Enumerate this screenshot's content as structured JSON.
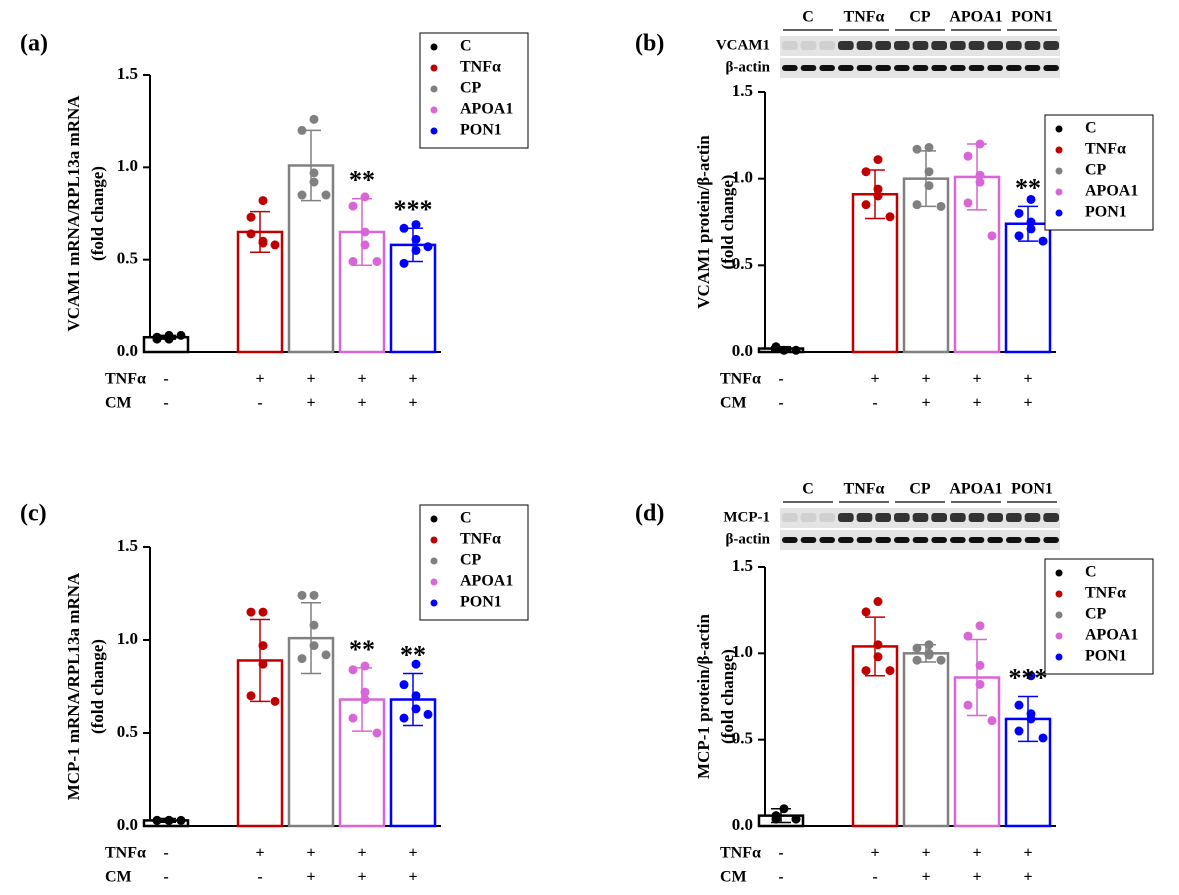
{
  "chart_data": [
    {
      "type": "bar",
      "panel_label": "(a)",
      "ylabel": [
        "VCAM1 mRNA/RPL13a mRNA",
        "(fold change)"
      ],
      "categories": [
        "C",
        "TNFα",
        "CP",
        "APOA1",
        "PON1"
      ],
      "colors": [
        "#000000",
        "#c00000",
        "#808080",
        "#d966d6",
        "#0000ff"
      ],
      "values": [
        0.08,
        0.65,
        1.01,
        0.65,
        0.58
      ],
      "errors": [
        0.01,
        0.11,
        0.19,
        0.18,
        0.09
      ],
      "points": [
        [
          0.07,
          0.08,
          0.09,
          0.08,
          0.07,
          0.09
        ],
        [
          0.82,
          0.73,
          0.6,
          0.59,
          0.64,
          0.58
        ],
        [
          1.26,
          1.2,
          0.97,
          0.92,
          0.85,
          0.85
        ],
        [
          0.84,
          0.79,
          0.65,
          0.58,
          0.49,
          0.49
        ],
        [
          0.69,
          0.67,
          0.61,
          0.55,
          0.48,
          0.57
        ]
      ],
      "annotations": [
        null,
        null,
        null,
        "**",
        "***"
      ],
      "ylim": [
        0,
        1.5
      ],
      "yticks": [
        {
          "value": 0,
          "label": "0.0"
        },
        {
          "value": 0.5,
          "label": "0.5"
        },
        {
          "value": 1,
          "label": "1.0"
        },
        {
          "value": 1.5,
          "label": "1.5"
        }
      ],
      "conditions": [
        {
          "name": "TNFα",
          "values": [
            "-",
            "+",
            "+",
            "+",
            "+"
          ]
        },
        {
          "name": "CM",
          "values": [
            "-",
            "-",
            "+",
            "+",
            "+"
          ]
        }
      ],
      "legend_loc": "upper right"
    },
    {
      "type": "bar",
      "panel_label": "(b)",
      "ylabel": [
        "VCAM1 protein/β-actin",
        "(fold change)"
      ],
      "blot": {
        "lanes": [
          "C",
          "TNFα",
          "CP",
          "APOA1",
          "PON1"
        ],
        "rows": [
          "VCAM1",
          "β-actin"
        ]
      },
      "categories": [
        "C",
        "TNFα",
        "CP",
        "APOA1",
        "PON1"
      ],
      "colors": [
        "#000000",
        "#c00000",
        "#808080",
        "#d966d6",
        "#0000ff"
      ],
      "values": [
        0.02,
        0.91,
        1.0,
        1.01,
        0.74
      ],
      "errors": [
        0.01,
        0.14,
        0.16,
        0.19,
        0.1
      ],
      "points": [
        [
          0.01,
          0.03,
          0.02,
          0.01
        ],
        [
          1.11,
          1.04,
          0.94,
          0.9,
          0.85,
          0.78
        ],
        [
          1.18,
          1.17,
          1.04,
          0.96,
          0.85,
          0.84
        ],
        [
          1.2,
          1.13,
          1.02,
          0.98,
          0.86,
          0.67
        ],
        [
          0.88,
          0.8,
          0.75,
          0.71,
          0.67,
          0.64
        ]
      ],
      "annotations": [
        null,
        null,
        null,
        null,
        "**"
      ],
      "ylim": [
        0,
        1.5
      ],
      "yticks": [
        {
          "value": 0,
          "label": "0.0"
        },
        {
          "value": 0.5,
          "label": "0.5"
        },
        {
          "value": 1,
          "label": "1.0"
        },
        {
          "value": 1.5,
          "label": "1.5"
        }
      ],
      "conditions": [
        {
          "name": "TNFα",
          "values": [
            "-",
            "+",
            "+",
            "+",
            "+"
          ]
        },
        {
          "name": "CM",
          "values": [
            "-",
            "-",
            "+",
            "+",
            "+"
          ]
        }
      ],
      "legend_loc": "upper right"
    },
    {
      "type": "bar",
      "panel_label": "(c)",
      "ylabel": [
        "MCP-1 mRNA/RPL13a mRNA",
        "(fold change)"
      ],
      "categories": [
        "C",
        "TNFα",
        "CP",
        "APOA1",
        "PON1"
      ],
      "colors": [
        "#000000",
        "#c00000",
        "#808080",
        "#d966d6",
        "#0000ff"
      ],
      "values": [
        0.03,
        0.89,
        1.01,
        0.68,
        0.68
      ],
      "errors": [
        0.01,
        0.22,
        0.19,
        0.17,
        0.14
      ],
      "points": [
        [
          0.03,
          0.03,
          0.03,
          0.03,
          0.03,
          0.03
        ],
        [
          1.15,
          1.15,
          0.97,
          0.87,
          0.7,
          0.67
        ],
        [
          1.24,
          1.24,
          1.08,
          0.97,
          0.9,
          0.92
        ],
        [
          0.86,
          0.84,
          0.72,
          0.68,
          0.58,
          0.5
        ],
        [
          0.87,
          0.76,
          0.7,
          0.63,
          0.58,
          0.6
        ]
      ],
      "annotations": [
        null,
        null,
        null,
        "**",
        "**"
      ],
      "ylim": [
        0,
        1.5
      ],
      "yticks": [
        {
          "value": 0,
          "label": "0.0"
        },
        {
          "value": 0.5,
          "label": "0.5"
        },
        {
          "value": 1,
          "label": "1.0"
        },
        {
          "value": 1.5,
          "label": "1.5"
        }
      ],
      "conditions": [
        {
          "name": "TNFα",
          "values": [
            "-",
            "+",
            "+",
            "+",
            "+"
          ]
        },
        {
          "name": "CM",
          "values": [
            "-",
            "-",
            "+",
            "+",
            "+"
          ]
        }
      ],
      "legend_loc": "upper right"
    },
    {
      "type": "bar",
      "panel_label": "(d)",
      "ylabel": [
        "MCP-1 protein/β-actin",
        "(fold change)"
      ],
      "blot": {
        "lanes": [
          "C",
          "TNFα",
          "CP",
          "APOA1",
          "PON1"
        ],
        "rows": [
          "MCP-1",
          "β-actin"
        ]
      },
      "categories": [
        "C",
        "TNFα",
        "CP",
        "APOA1",
        "PON1"
      ],
      "colors": [
        "#000000",
        "#c00000",
        "#808080",
        "#d966d6",
        "#0000ff"
      ],
      "values": [
        0.06,
        1.04,
        1.0,
        0.86,
        0.62
      ],
      "errors": [
        0.04,
        0.17,
        0.05,
        0.22,
        0.13
      ],
      "points": [
        [
          0.1,
          0.06,
          0.04,
          0.04
        ],
        [
          1.3,
          1.24,
          1.05,
          0.98,
          0.9,
          0.9
        ],
        [
          1.05,
          1.03,
          1.0,
          0.99,
          0.96,
          0.96
        ],
        [
          1.16,
          1.1,
          0.93,
          0.82,
          0.7,
          0.61
        ],
        [
          0.87,
          0.7,
          0.65,
          0.62,
          0.55,
          0.51
        ]
      ],
      "annotations": [
        null,
        null,
        null,
        null,
        "***"
      ],
      "ylim": [
        0,
        1.5
      ],
      "yticks": [
        {
          "value": 0,
          "label": "0.0"
        },
        {
          "value": 0.5,
          "label": "0.5"
        },
        {
          "value": 1,
          "label": "1.0"
        },
        {
          "value": 1.5,
          "label": "1.5"
        }
      ],
      "conditions": [
        {
          "name": "TNFα",
          "values": [
            "-",
            "+",
            "+",
            "+",
            "+"
          ]
        },
        {
          "name": "CM",
          "values": [
            "-",
            "-",
            "+",
            "+",
            "+"
          ]
        }
      ],
      "legend_loc": "upper right"
    }
  ]
}
